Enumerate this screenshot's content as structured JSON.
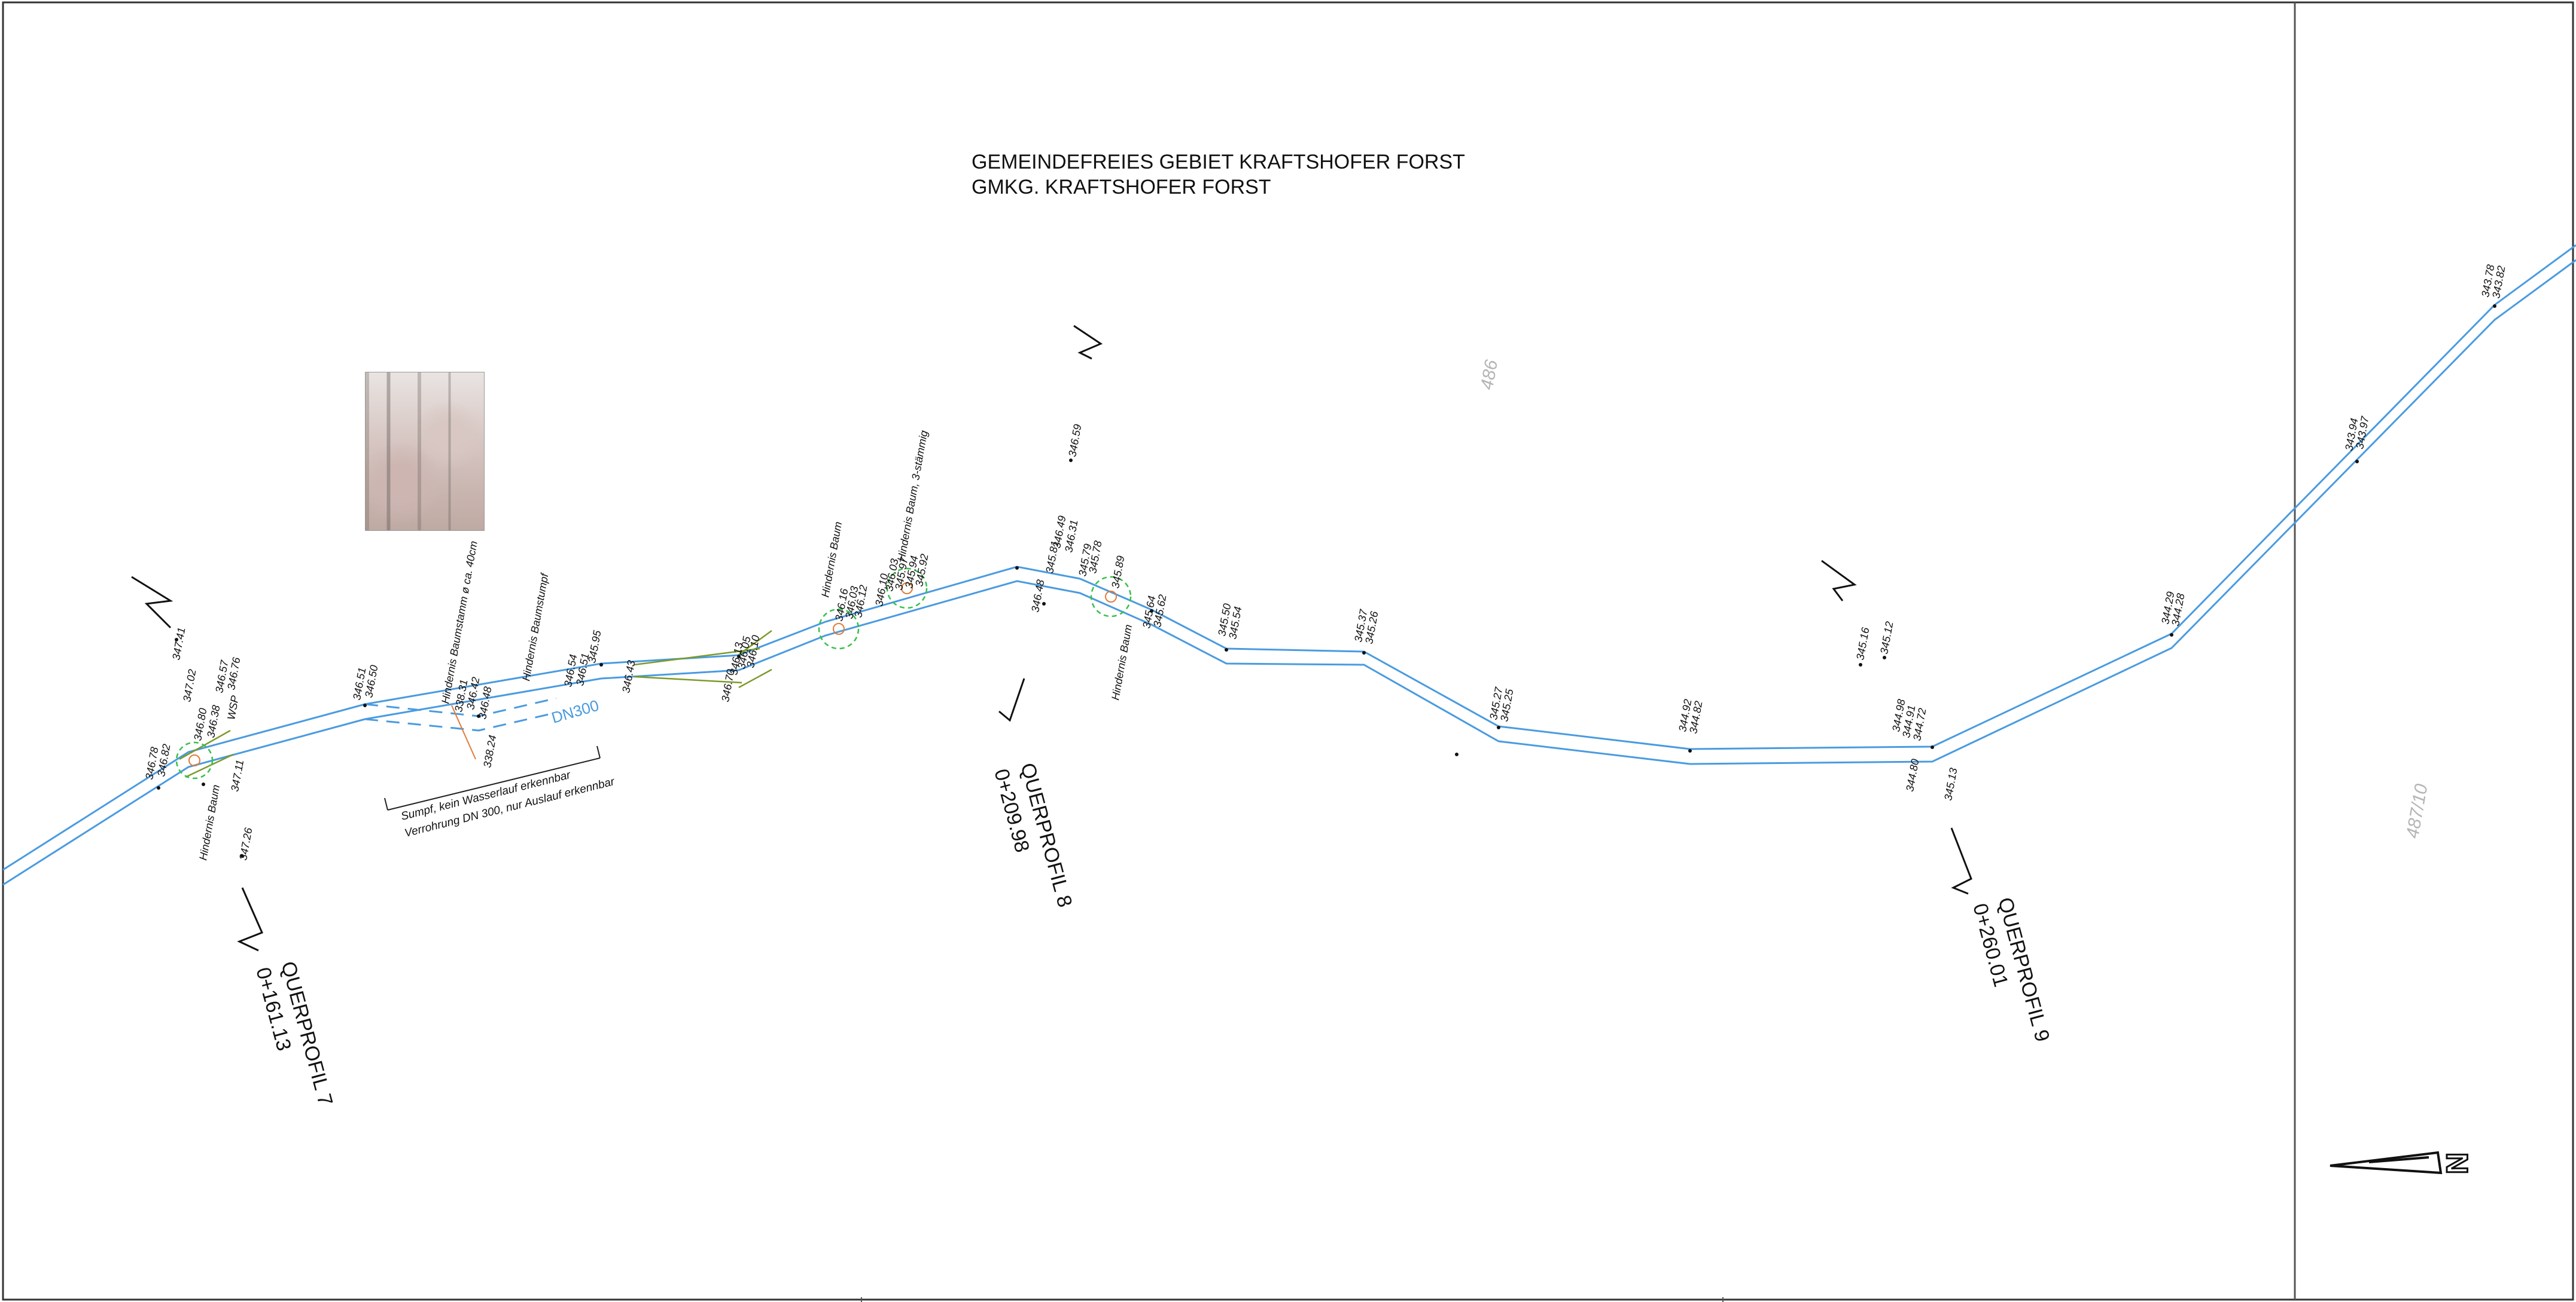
{
  "header": {
    "line1": "GEMEINDEFREIES GEBIET KRAFTSHOFER FORST",
    "line2": "GMKG. KRAFTSHOFER FORST"
  },
  "parcels": [
    "486",
    "487/10"
  ],
  "north_label": "N",
  "pipe_label": "DN300",
  "swamp_note": {
    "line1": "Sumpf, kein Wasserlauf erkennbar",
    "line2": "Verrohrung DN 300, nur Auslauf erkennbar"
  },
  "profiles": [
    {
      "name": "QUERPROFIL 7",
      "station": "0+161.13"
    },
    {
      "name": "QUERPROFIL 8",
      "station": "0+209.98"
    },
    {
      "name": "QUERPROFIL 9",
      "station": "0+260.01"
    }
  ],
  "annotations": [
    "Hindernis Baum",
    "Hindernis Baumstamm ø ca. 40cm",
    "Hindernis Baumstumpf",
    "Hindernis Baum",
    "Hindernis Baum, 3-stämmig",
    "Hindernis Baum",
    "WSP"
  ],
  "elevations": [
    "346.78",
    "346.82",
    "347.41",
    "347.02",
    "346.57",
    "346.76",
    "346.38",
    "346.80",
    "347.11",
    "347.26",
    "346.51",
    "346.50",
    "338.31",
    "346.42",
    "346.48",
    "338.24",
    "346.54",
    "346.51",
    "345.95",
    "346.43",
    "346.70",
    "346.13",
    "346.05",
    "346.10",
    "346.16",
    "346.03",
    "346.12",
    "346.10",
    "346.03",
    "345.97",
    "345.94",
    "345.92",
    "346.48",
    "346.49",
    "346.31",
    "345.81",
    "345.79",
    "345.78",
    "346.59",
    "345.89",
    "345.64",
    "345.62",
    "345.50",
    "345.54",
    "345.37",
    "345.26",
    "345.27",
    "345.25",
    "344.92",
    "344.82",
    "345.16",
    "345.12",
    "344.98",
    "344.91",
    "344.72",
    "344.80",
    "345.13",
    "344.29",
    "344.28",
    "343.94",
    "343.97",
    "343.78",
    "343.82"
  ]
}
